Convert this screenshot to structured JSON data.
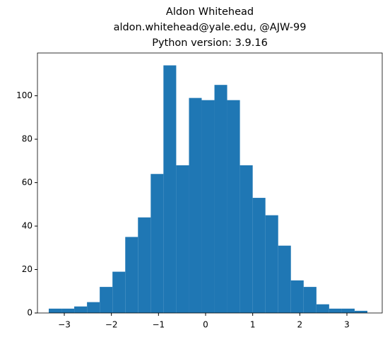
{
  "chart_data": {
    "type": "histogram",
    "title": [
      "Aldon Whitehead",
      "aldon.whitehead@yale.edu, @AJW-99",
      "Python version: 3.9.16"
    ],
    "bins": [
      -3.33,
      -3.059,
      -2.789,
      -2.518,
      -2.248,
      -1.977,
      -1.706,
      -1.436,
      -1.165,
      -0.895,
      -0.624,
      -0.353,
      -0.083,
      0.188,
      0.458,
      0.729,
      1.0,
      1.27,
      1.541,
      1.811,
      2.082,
      2.353,
      2.623,
      2.894,
      3.164,
      3.435
    ],
    "values": [
      2,
      2,
      3,
      5,
      12,
      19,
      35,
      44,
      64,
      114,
      68,
      99,
      98,
      105,
      98,
      68,
      53,
      45,
      31,
      15,
      12,
      4,
      2,
      2,
      1
    ],
    "color": "#1f77b4",
    "xlim": [
      -3.57,
      3.75
    ],
    "ylim": [
      0,
      119.7
    ],
    "xticks": [
      {
        "value": -3,
        "label": "−3"
      },
      {
        "value": -2,
        "label": "−2"
      },
      {
        "value": -1,
        "label": "−1"
      },
      0,
      1,
      2,
      3
    ],
    "yticks": [
      0,
      20,
      40,
      60,
      80,
      100
    ],
    "grid": false
  }
}
